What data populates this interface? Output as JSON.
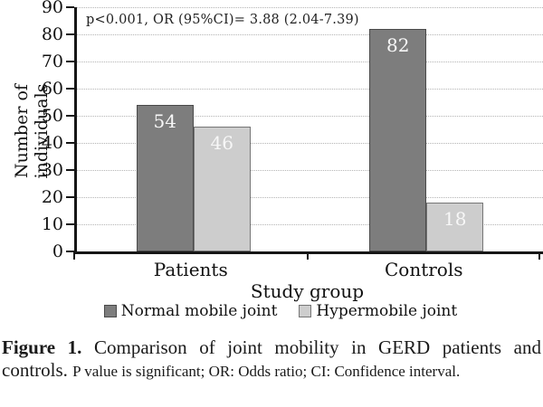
{
  "chart_data": {
    "type": "bar",
    "categories": [
      "Patients",
      "Controls"
    ],
    "series": [
      {
        "name": "Normal mobile joint",
        "values": [
          54,
          82
        ],
        "color": "#7d7d7d",
        "border": "#4a4a4a"
      },
      {
        "name": "Hypermobile joint",
        "values": [
          46,
          18
        ],
        "color": "#cdcdcd",
        "border": "#767676"
      }
    ],
    "xlabel": "Study group",
    "ylabel": "Number of individuals",
    "ylim": [
      0,
      90
    ],
    "ytick_step": 10,
    "annotation": "p<0.001, OR (95%CI)= 3.88 (2.04-7.39)",
    "grid": "horizontal-dotted",
    "legend_position": "bottom",
    "bar_label_color": "#f7f7f7"
  },
  "caption": {
    "label": "Figure 1.",
    "title": " Comparison of joint mobility in GERD patients and controls. ",
    "note": "P value is significant; OR: Odds ratio; CI: Confidence interval."
  }
}
